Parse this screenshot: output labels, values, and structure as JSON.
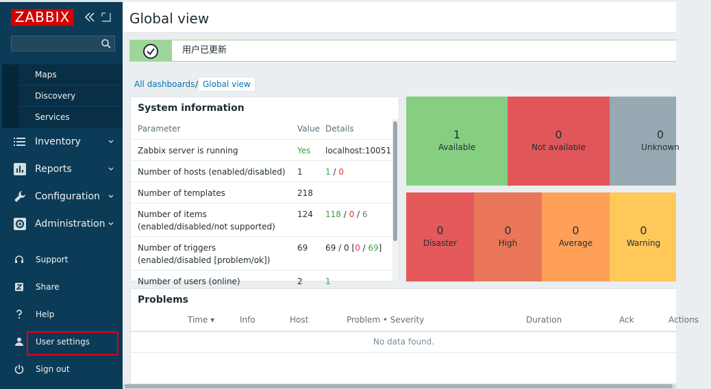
{
  "brand": {
    "logo_text": "ZABBIX"
  },
  "sidebar": {
    "collapse_icon": "double-chevron-left-icon",
    "kiosk_icon": "fullscreen-icon",
    "search": {
      "placeholder": "",
      "value": ""
    },
    "submenu": [
      {
        "label": "Maps"
      },
      {
        "label": "Discovery"
      },
      {
        "label": "Services"
      }
    ],
    "main": [
      {
        "label": "Inventory",
        "icon": "list-icon"
      },
      {
        "label": "Reports",
        "icon": "bar-chart-icon"
      },
      {
        "label": "Configuration",
        "icon": "wrench-icon"
      },
      {
        "label": "Administration",
        "icon": "gear-icon"
      }
    ],
    "utility": [
      {
        "label": "Support",
        "icon": "headset-icon"
      },
      {
        "label": "Share",
        "icon": "share-z-icon"
      },
      {
        "label": "Help",
        "icon": "question-icon"
      },
      {
        "label": "User settings",
        "icon": "user-icon"
      },
      {
        "label": "Sign out",
        "icon": "power-icon"
      }
    ]
  },
  "header": {
    "title": "Global view"
  },
  "message": {
    "text": "用户已更新",
    "status": "success"
  },
  "breadcrumb": {
    "all": "All dashboards",
    "separator": "/",
    "current": "Global view"
  },
  "system_info": {
    "title": "System information",
    "columns": [
      "Parameter",
      "Value",
      "Details"
    ],
    "rows": [
      {
        "param": "Zabbix server is running",
        "value": "Yes",
        "details": [
          "localhost:10051"
        ]
      },
      {
        "param": "Number of hosts (enabled/disabled)",
        "value": "1",
        "details": [
          "1",
          " / ",
          "0"
        ]
      },
      {
        "param": "Number of templates",
        "value": "218",
        "details": []
      },
      {
        "param": "Number of items (enabled/disabled/not supported)",
        "value": "124",
        "details": [
          "118",
          " / ",
          "0",
          " / ",
          "6"
        ]
      },
      {
        "param": "Number of triggers (enabled/disabled [problem/ok])",
        "value": "69",
        "details": [
          "69 / 0 [",
          "0",
          " / ",
          "69",
          "]"
        ]
      },
      {
        "param": "Number of users (online)",
        "value": "2",
        "details": [
          "1"
        ]
      }
    ]
  },
  "host_availability": [
    {
      "count": "1",
      "label": "Available",
      "color": "#86cf82"
    },
    {
      "count": "0",
      "label": "Not available",
      "color": "#e15759"
    },
    {
      "count": "0",
      "label": "Unknown",
      "color": "#97aab3"
    }
  ],
  "problem_severity": [
    {
      "count": "0",
      "label": "Disaster",
      "color": "#e45959"
    },
    {
      "count": "0",
      "label": "High",
      "color": "#e97659"
    },
    {
      "count": "0",
      "label": "Average",
      "color": "#ffa059"
    },
    {
      "count": "0",
      "label": "Warning",
      "color": "#ffc859"
    }
  ],
  "problems": {
    "title": "Problems",
    "columns": [
      "Time ▾",
      "Info",
      "Host",
      "Problem • Severity",
      "Duration",
      "Ack",
      "Actions"
    ],
    "empty_text": "No data found."
  }
}
